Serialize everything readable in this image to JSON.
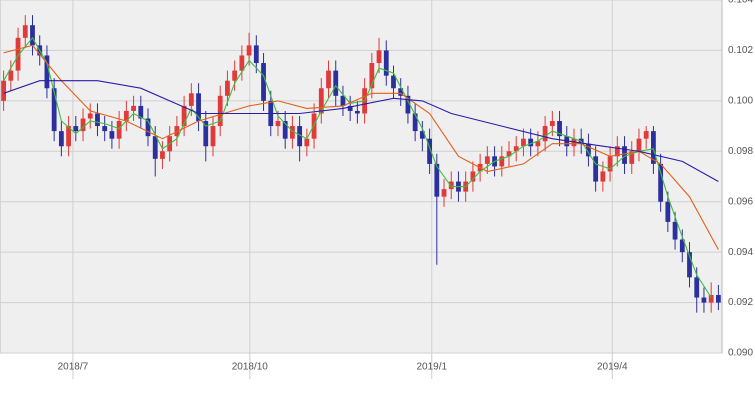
{
  "chart_data": {
    "type": "candlestick",
    "up_color": "#e03a3a",
    "down_color": "#2c2f9e",
    "xlim": [
      -0.5,
      99.5
    ],
    "ylim": [
      0.09,
      0.104
    ],
    "yticks": [
      {
        "value": 0.09,
        "label": "0.090"
      },
      0.092,
      0.094,
      0.096,
      0.098,
      {
        "value": 0.1,
        "label": "0.100"
      },
      0.102,
      0.104
    ],
    "xticks": [
      {
        "value": 9.6,
        "label": "2018/7"
      },
      {
        "value": 34.1,
        "label": "2018/10"
      },
      {
        "value": 59.3,
        "label": "2019/1"
      },
      {
        "value": 84.3,
        "label": "2019/4"
      }
    ],
    "grid": true,
    "open": [
      0.1,
      0.1008,
      0.1012,
      0.1025,
      0.103,
      0.1022,
      0.1018,
      0.1005,
      0.0988,
      0.0982,
      0.099,
      0.0988,
      0.0993,
      0.0995,
      0.099,
      0.0988,
      0.0985,
      0.0992,
      0.0996,
      0.0998,
      0.0993,
      0.0986,
      0.0977,
      0.098,
      0.0986,
      0.099,
      0.0998,
      0.1003,
      0.0992,
      0.0982,
      0.099,
      0.1002,
      0.1008,
      0.1012,
      0.1018,
      0.1022,
      0.1015,
      0.1,
      0.099,
      0.0992,
      0.0985,
      0.099,
      0.0982,
      0.0985,
      0.0995,
      0.1005,
      0.1012,
      0.1002,
      0.0998,
      0.0996,
      0.0995,
      0.1005,
      0.1015,
      0.102,
      0.101,
      0.1005,
      0.1002,
      0.0995,
      0.0988,
      0.0985,
      0.0975,
      0.0962,
      0.0965,
      0.0968,
      0.0964,
      0.0968,
      0.0972,
      0.0975,
      0.0978,
      0.0974,
      0.0978,
      0.098,
      0.0982,
      0.0985,
      0.0982,
      0.0984,
      0.099,
      0.0992,
      0.0986,
      0.0982,
      0.0985,
      0.0983,
      0.0978,
      0.0968,
      0.0972,
      0.0978,
      0.0982,
      0.0975,
      0.098,
      0.0985,
      0.0988,
      0.0975,
      0.096,
      0.0952,
      0.0945,
      0.094,
      0.093,
      0.0922,
      0.092,
      0.0923
    ],
    "high": [
      0.1012,
      0.1016,
      0.1029,
      0.1034,
      0.1034,
      0.1026,
      0.1022,
      0.1009,
      0.0992,
      0.0994,
      0.0994,
      0.0997,
      0.0999,
      0.0999,
      0.0994,
      0.0992,
      0.0996,
      0.1,
      0.1002,
      0.1002,
      0.0997,
      0.099,
      0.0984,
      0.099,
      0.0994,
      0.1002,
      0.1007,
      0.1007,
      0.0996,
      0.0994,
      0.1006,
      0.1012,
      0.1016,
      0.1022,
      0.1027,
      0.1026,
      0.1019,
      0.1004,
      0.0996,
      0.0996,
      0.0994,
      0.0994,
      0.0989,
      0.0999,
      0.1009,
      0.1016,
      0.1016,
      0.1006,
      0.1002,
      0.1,
      0.1009,
      0.1019,
      0.1025,
      0.1024,
      0.1014,
      0.1009,
      0.1006,
      0.0999,
      0.0992,
      0.0989,
      0.0979,
      0.0969,
      0.0972,
      0.0972,
      0.0972,
      0.0976,
      0.0979,
      0.0982,
      0.0982,
      0.0982,
      0.0984,
      0.0986,
      0.0989,
      0.0989,
      0.0988,
      0.0994,
      0.0996,
      0.0996,
      0.099,
      0.0989,
      0.0989,
      0.0987,
      0.0982,
      0.0976,
      0.0982,
      0.0986,
      0.0986,
      0.0984,
      0.0989,
      0.099,
      0.099,
      0.0979,
      0.0964,
      0.0956,
      0.0949,
      0.0944,
      0.0934,
      0.0926,
      0.0928,
      0.0927
    ],
    "low": [
      0.0996,
      0.1004,
      0.1008,
      0.1021,
      0.1018,
      0.1014,
      0.1001,
      0.0984,
      0.0978,
      0.0978,
      0.0984,
      0.0984,
      0.0989,
      0.0986,
      0.0984,
      0.0981,
      0.0981,
      0.0988,
      0.0992,
      0.0989,
      0.0982,
      0.097,
      0.0973,
      0.0976,
      0.0982,
      0.0986,
      0.0994,
      0.0988,
      0.0976,
      0.0978,
      0.0986,
      0.0998,
      0.1004,
      0.1008,
      0.1014,
      0.1011,
      0.0996,
      0.0986,
      0.0986,
      0.0981,
      0.0981,
      0.0976,
      0.0978,
      0.0981,
      0.0991,
      0.1001,
      0.0998,
      0.0994,
      0.0992,
      0.0991,
      0.0991,
      0.1001,
      0.1011,
      0.1006,
      0.1001,
      0.0998,
      0.0991,
      0.0984,
      0.098,
      0.0971,
      0.0935,
      0.0958,
      0.0961,
      0.096,
      0.096,
      0.0964,
      0.0968,
      0.0971,
      0.097,
      0.097,
      0.0974,
      0.0976,
      0.0978,
      0.0978,
      0.0978,
      0.098,
      0.0986,
      0.0982,
      0.0978,
      0.0978,
      0.0979,
      0.0974,
      0.0964,
      0.0964,
      0.0968,
      0.0974,
      0.0971,
      0.0971,
      0.0976,
      0.0981,
      0.0971,
      0.0956,
      0.0948,
      0.0941,
      0.0936,
      0.0926,
      0.0916,
      0.0916,
      0.0916,
      0.0917
    ],
    "close": [
      0.1008,
      0.1012,
      0.1025,
      0.103,
      0.1022,
      0.1018,
      0.1005,
      0.0988,
      0.0982,
      0.099,
      0.0988,
      0.0993,
      0.0995,
      0.099,
      0.0988,
      0.0985,
      0.0992,
      0.0996,
      0.0998,
      0.0993,
      0.0986,
      0.0977,
      0.098,
      0.0986,
      0.099,
      0.0998,
      0.1003,
      0.0992,
      0.0982,
      0.099,
      0.1002,
      0.1008,
      0.1012,
      0.1018,
      0.1022,
      0.1015,
      0.1,
      0.099,
      0.0992,
      0.0985,
      0.099,
      0.0982,
      0.0985,
      0.0995,
      0.1005,
      0.1012,
      0.1002,
      0.0998,
      0.0996,
      0.0995,
      0.1005,
      0.1015,
      0.102,
      0.101,
      0.1005,
      0.1002,
      0.0995,
      0.0988,
      0.0985,
      0.0975,
      0.0962,
      0.0965,
      0.0968,
      0.0964,
      0.0968,
      0.0972,
      0.0975,
      0.0978,
      0.0974,
      0.0978,
      0.098,
      0.0982,
      0.0985,
      0.0982,
      0.0984,
      0.099,
      0.0992,
      0.0986,
      0.0982,
      0.0985,
      0.0983,
      0.0978,
      0.0968,
      0.0972,
      0.0978,
      0.0982,
      0.0975,
      0.098,
      0.0985,
      0.0988,
      0.0975,
      0.096,
      0.0952,
      0.0945,
      0.094,
      0.093,
      0.0922,
      0.092,
      0.0923,
      0.092
    ],
    "lines": [
      {
        "color": "#3cbf3c",
        "x": [
          0,
          2,
          4,
          6,
          8,
          10,
          12,
          14,
          16,
          18,
          20,
          22,
          24,
          26,
          28,
          30,
          32,
          34,
          36,
          38,
          40,
          42,
          44,
          46,
          48,
          50,
          52,
          54,
          56,
          58,
          60,
          62,
          64,
          66,
          68,
          70,
          72,
          74,
          76,
          78,
          80,
          82,
          84,
          86,
          88,
          90,
          92,
          94,
          96,
          98
        ],
        "values": [
          0.1008,
          0.1018,
          0.1025,
          0.1015,
          0.0992,
          0.0987,
          0.0992,
          0.0991,
          0.0989,
          0.0995,
          0.0992,
          0.0981,
          0.0985,
          0.0997,
          0.099,
          0.0992,
          0.1007,
          0.1016,
          0.101,
          0.0994,
          0.0988,
          0.0985,
          0.0996,
          0.1006,
          0.0999,
          0.1,
          0.1013,
          0.1011,
          0.1,
          0.0989,
          0.0974,
          0.0966,
          0.0966,
          0.0972,
          0.0976,
          0.0978,
          0.0982,
          0.0984,
          0.0988,
          0.0986,
          0.0984,
          0.0975,
          0.0973,
          0.0978,
          0.098,
          0.0981,
          0.0962,
          0.0946,
          0.0931,
          0.0922
        ]
      },
      {
        "color": "#e2601e",
        "x": [
          0,
          4,
          8,
          12,
          17,
          22,
          27,
          34,
          38,
          42,
          47,
          51,
          55,
          59,
          63,
          67,
          72,
          76,
          80,
          84,
          88,
          91,
          95,
          99
        ],
        "values": [
          0.1019,
          0.1022,
          0.1008,
          0.0996,
          0.0992,
          0.0985,
          0.0992,
          0.0998,
          0.1,
          0.0997,
          0.0998,
          0.1003,
          0.1003,
          0.0995,
          0.0978,
          0.0972,
          0.0975,
          0.0983,
          0.0983,
          0.0978,
          0.098,
          0.0975,
          0.0962,
          0.0941
        ]
      },
      {
        "color": "#2a1fa8",
        "x": [
          0,
          5,
          13,
          19,
          27,
          34,
          41,
          47,
          54,
          58,
          62,
          69,
          76,
          83,
          88,
          94,
          99
        ],
        "values": [
          0.1003,
          0.1008,
          0.1008,
          0.1005,
          0.0995,
          0.0995,
          0.0995,
          0.0997,
          0.1001,
          0.1,
          0.0995,
          0.099,
          0.0985,
          0.0982,
          0.098,
          0.0976,
          0.0968
        ]
      }
    ]
  }
}
